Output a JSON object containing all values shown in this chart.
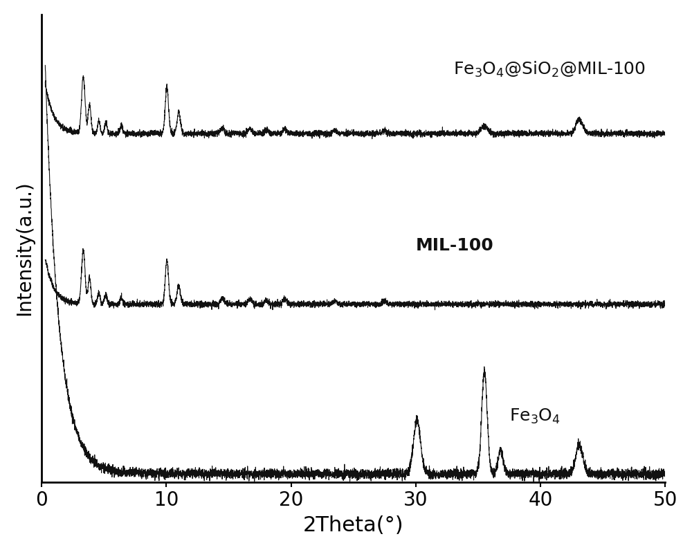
{
  "xlabel": "2Theta(°)",
  "ylabel": "Intensity(a.u.)",
  "xlim": [
    0,
    50
  ],
  "line_color": "#111111",
  "line_width": 0.8,
  "background_color": "#ffffff",
  "label_fe3o4": "Fe$_3$O$_4$",
  "label_mil100": "MIL-100",
  "label_composite": "Fe$_3$O$_4$@SiO$_2$@MIL-100",
  "xlabel_fontsize": 22,
  "ylabel_fontsize": 20,
  "tick_fontsize": 20,
  "label_fontsize": 18,
  "noise_seed": 42
}
